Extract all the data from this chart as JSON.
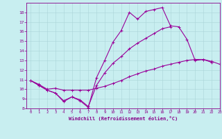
{
  "background_color": "#c8eef0",
  "grid_color": "#aad4d8",
  "line_color": "#990099",
  "marker_color": "#990099",
  "xlabel": "Windchill (Refroidissement éolien,°C)",
  "xlabel_color": "#880088",
  "tick_color": "#880088",
  "ylim": [
    8,
    19
  ],
  "xlim": [
    -0.5,
    23
  ],
  "yticks": [
    8,
    9,
    10,
    11,
    12,
    13,
    14,
    15,
    16,
    17,
    18
  ],
  "xticks": [
    0,
    1,
    2,
    3,
    4,
    5,
    6,
    7,
    8,
    9,
    10,
    11,
    12,
    13,
    14,
    15,
    16,
    17,
    18,
    19,
    20,
    21,
    22,
    23
  ],
  "line1_x": [
    0,
    1,
    2,
    3,
    4,
    5,
    6,
    7,
    8,
    9,
    10,
    11,
    12,
    13,
    14,
    15,
    16,
    17,
    18,
    19,
    20,
    21,
    22
  ],
  "line1_y": [
    10.9,
    10.4,
    9.9,
    9.6,
    8.7,
    9.2,
    8.8,
    8.1,
    11.2,
    13.0,
    14.9,
    16.1,
    18.0,
    17.3,
    18.1,
    18.3,
    18.5,
    16.6,
    16.5,
    15.2,
    13.0,
    13.1,
    12.8
  ],
  "line2_x": [
    0,
    1,
    2,
    3,
    4,
    5,
    6,
    7,
    8,
    9,
    10,
    11,
    12,
    13,
    14,
    15,
    16,
    17
  ],
  "line2_y": [
    10.9,
    10.4,
    9.9,
    9.6,
    8.8,
    9.2,
    8.9,
    8.2,
    10.4,
    11.7,
    12.7,
    13.4,
    14.2,
    14.8,
    15.3,
    15.8,
    16.3,
    16.5
  ],
  "line3_x": [
    0,
    1,
    2,
    3,
    4,
    5,
    6,
    7,
    8,
    9,
    10,
    11,
    12,
    13,
    14,
    15,
    16,
    17,
    18,
    19,
    20,
    21,
    22,
    23
  ],
  "line3_y": [
    10.9,
    10.5,
    10.0,
    10.1,
    9.9,
    9.9,
    9.9,
    9.9,
    10.1,
    10.3,
    10.6,
    10.9,
    11.3,
    11.6,
    11.9,
    12.1,
    12.4,
    12.6,
    12.8,
    13.0,
    13.1,
    13.1,
    12.9,
    12.6
  ],
  "figsize": [
    3.2,
    2.0
  ],
  "dpi": 100
}
